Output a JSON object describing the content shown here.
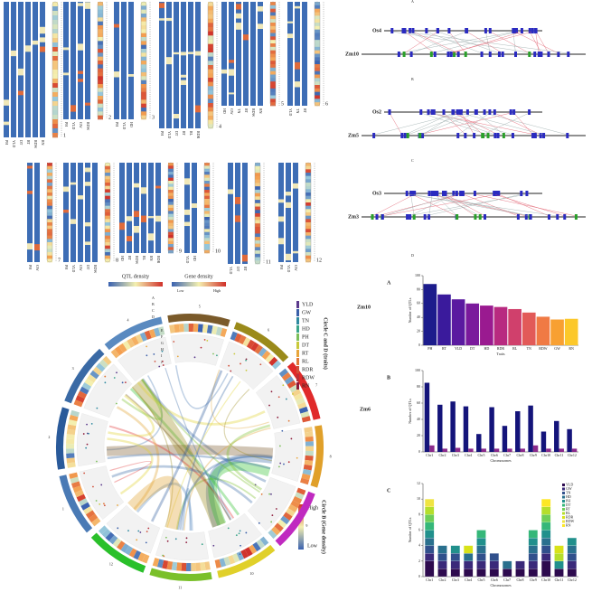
{
  "chromosome_panels": [
    {
      "number": "1",
      "traits": [
        "PH",
        "YLD",
        "DT",
        "RT",
        "RDW",
        "RN"
      ]
    },
    {
      "number": "2",
      "traits": [
        "PH",
        "YLD",
        "GW",
        "RDW"
      ]
    },
    {
      "number": "3",
      "traits": [
        "PH",
        "YLD",
        "HD"
      ]
    },
    {
      "number": "4",
      "traits": [
        "PH",
        "YLD",
        "DT",
        "RT",
        "RL",
        "RDR"
      ]
    },
    {
      "number": "5",
      "traits": [
        "HD",
        "GW",
        "TN",
        "RT",
        "RDW",
        "RN"
      ]
    },
    {
      "number": "6",
      "traits": [
        "YLD",
        "TN",
        "RT"
      ]
    },
    {
      "number": "7",
      "traits": [
        "PH",
        "GW"
      ]
    },
    {
      "number": "8",
      "traits": [
        "PH",
        "YLD",
        "GW",
        "DT",
        "RDW"
      ]
    },
    {
      "number": "9",
      "traits": [
        "HD",
        "RT",
        "RDW",
        "RL",
        "RN",
        "RDR"
      ]
    },
    {
      "number": "10",
      "traits": [
        "YLD",
        "HD"
      ]
    },
    {
      "number": "11",
      "traits": [
        "YLD",
        "DT",
        "RT"
      ]
    },
    {
      "number": "12",
      "traits": [
        "PH",
        "YLD",
        "GW"
      ]
    }
  ],
  "density_legend": {
    "qtl": "QTL density",
    "gene": "Gene density",
    "low": "Low",
    "high": "High"
  },
  "circos": {
    "chromosomes": [
      "1",
      "2",
      "3",
      "4",
      "5",
      "6",
      "7",
      "8",
      "9",
      "10",
      "11",
      "12"
    ],
    "ring_labels": [
      "A",
      "B",
      "C",
      "D",
      "E",
      "F",
      "G",
      "H",
      "I",
      "J"
    ],
    "traits": [
      {
        "name": "YLD",
        "color": "#5b3a8c"
      },
      {
        "name": "GW",
        "color": "#3a5fa8"
      },
      {
        "name": "TN",
        "color": "#2f8aa0"
      },
      {
        "name": "HD",
        "color": "#3aa58a"
      },
      {
        "name": "PH",
        "color": "#7cbf5a"
      },
      {
        "name": "DT",
        "color": "#c9c93a"
      },
      {
        "name": "RT",
        "color": "#e8a53a"
      },
      {
        "name": "RL",
        "color": "#e07a3a"
      },
      {
        "name": "RDR",
        "color": "#d0503a"
      },
      {
        "name": "RDW",
        "color": "#b8303a"
      },
      {
        "name": "RN",
        "color": "#8c1a3a"
      }
    ],
    "traits_title": "Circle C and D (traits)",
    "gene_high": "High",
    "gene_low": "Low",
    "gene_title": "Circle B (Gene density)"
  },
  "synteny": [
    {
      "label": "A",
      "rice": "Os4",
      "maize": "Zm10"
    },
    {
      "label": "B",
      "rice": "Os2",
      "maize": "Zm5"
    },
    {
      "label": "C",
      "rice": "Os3",
      "maize": "Zm3"
    }
  ],
  "synteny_d_label": "D",
  "side_labels": [
    "Zm10",
    "Zm6"
  ],
  "chart_data": [
    {
      "type": "bar",
      "label": "A",
      "x_label": "Traits",
      "y_label": "Number of QTLs",
      "categories": [
        "PH",
        "RT",
        "YLD",
        "DT",
        "HD",
        "RDR",
        "RL",
        "TN",
        "RDW",
        "GW",
        "RN"
      ],
      "values": [
        88,
        73,
        66,
        60,
        57,
        55,
        52,
        47,
        41,
        37,
        38
      ],
      "colors": [
        "#1c1c8c",
        "#3a1a9c",
        "#5a1aa0",
        "#7a1a9c",
        "#9a1a90",
        "#b82a80",
        "#d0406c",
        "#e25a58",
        "#f07a44",
        "#f8a032",
        "#fcc82a"
      ],
      "ylim": [
        0,
        100
      ],
      "yticks": [
        0,
        20,
        40,
        60,
        80,
        100
      ]
    },
    {
      "type": "grouped_bar",
      "label": "B",
      "x_label": "Chromosomes",
      "y_label": "Number of QTLs",
      "categories": [
        "Chr1",
        "Chr2",
        "Chr3",
        "Chr4",
        "Chr5",
        "Chr6",
        "Chr7",
        "Chr8",
        "Chr9",
        "Chr10",
        "Chr11",
        "Chr12"
      ],
      "series": [
        {
          "color": "#14147a",
          "values": [
            85,
            58,
            62,
            56,
            22,
            55,
            32,
            50,
            57,
            25,
            38,
            28
          ]
        },
        {
          "color": "#8b2a8b",
          "values": [
            8,
            4,
            5,
            4,
            4,
            4,
            4,
            4,
            8,
            4,
            4,
            4
          ]
        }
      ],
      "ylim": [
        0,
        100
      ],
      "yticks": [
        0,
        20,
        40,
        60,
        80,
        100
      ]
    },
    {
      "type": "stacked_bar",
      "label": "C",
      "x_label": "Chromosomes",
      "y_label": "Number of QTLs",
      "categories": [
        "Chr1",
        "Chr2",
        "Chr3",
        "Chr4",
        "Chr5",
        "Chr6",
        "Chr7",
        "Chr8",
        "Chr9",
        "Chr10",
        "Chr11",
        "Chr12"
      ],
      "series": [
        {
          "name": "YLD",
          "color": "#2d0a4e",
          "values": [
            2,
            1,
            1,
            1,
            1,
            1,
            1,
            1,
            1,
            2,
            1,
            1
          ]
        },
        {
          "name": "GW",
          "color": "#3b2a7a",
          "values": [
            1,
            1,
            1,
            1,
            1,
            1,
            0,
            1,
            1,
            1,
            0,
            1
          ]
        },
        {
          "name": "TN",
          "color": "#31508c",
          "values": [
            1,
            1,
            1,
            0,
            1,
            1,
            0,
            0,
            1,
            1,
            0,
            1
          ]
        },
        {
          "name": "HD",
          "color": "#2a708e",
          "values": [
            1,
            1,
            0,
            1,
            1,
            0,
            1,
            0,
            1,
            1,
            0,
            1
          ]
        },
        {
          "name": "PH",
          "color": "#21908c",
          "values": [
            1,
            0,
            1,
            0,
            1,
            0,
            0,
            0,
            1,
            1,
            1,
            1
          ]
        },
        {
          "name": "DT",
          "color": "#35b779",
          "values": [
            1,
            0,
            0,
            0,
            1,
            0,
            0,
            0,
            1,
            1,
            0,
            0
          ]
        },
        {
          "name": "RT",
          "color": "#6ece58",
          "values": [
            1,
            0,
            0,
            0,
            0,
            0,
            0,
            0,
            0,
            1,
            0,
            0
          ]
        },
        {
          "name": "RL",
          "color": "#b5de2b",
          "values": [
            1,
            0,
            0,
            0,
            0,
            0,
            0,
            0,
            0,
            1,
            1,
            0
          ]
        },
        {
          "name": "RDR",
          "color": "#d8e219",
          "values": [
            0,
            0,
            0,
            1,
            0,
            0,
            0,
            0,
            0,
            0,
            1,
            0
          ]
        },
        {
          "name": "RDW",
          "color": "#f0e442",
          "values": [
            1,
            0,
            0,
            0,
            0,
            0,
            0,
            0,
            0,
            0,
            0,
            0
          ]
        },
        {
          "name": "RN",
          "color": "#fde725",
          "values": [
            0,
            0,
            0,
            0,
            0,
            0,
            0,
            0,
            0,
            1,
            0,
            0
          ]
        }
      ],
      "ylim": [
        0,
        12
      ],
      "yticks": [
        0,
        2,
        4,
        6,
        8,
        10,
        12
      ],
      "legend": "top-right"
    }
  ]
}
